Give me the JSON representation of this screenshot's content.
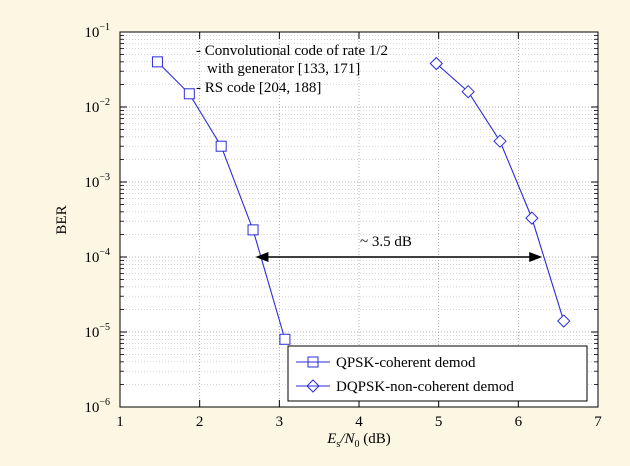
{
  "chart_data": {
    "type": "line",
    "title": "",
    "xlabel": {
      "main": "E",
      "sub1": "s",
      "slash": "/N",
      "sub2": "0",
      "tail": " (dB)"
    },
    "ylabel": "BER",
    "xlim": [
      1,
      7
    ],
    "ylim": [
      1e-06,
      0.1
    ],
    "yscale": "log",
    "grid": true,
    "x_ticks": [
      "1",
      "2",
      "3",
      "4",
      "5",
      "6",
      "7"
    ],
    "y_ticks": [
      {
        "base": "10",
        "exp": "−6"
      },
      {
        "base": "10",
        "exp": "−5"
      },
      {
        "base": "10",
        "exp": "−4"
      },
      {
        "base": "10",
        "exp": "−3"
      },
      {
        "base": "10",
        "exp": "−2"
      },
      {
        "base": "10",
        "exp": "−1"
      }
    ],
    "series": [
      {
        "name": "QPSK-coherent demod",
        "marker": "square",
        "color": "#2b2bd9",
        "x": [
          1.47,
          1.87,
          2.27,
          2.67,
          3.07
        ],
        "y": [
          0.04,
          0.015,
          0.003,
          0.00023,
          8e-06
        ]
      },
      {
        "name": "DQPSK-non-coherent demod",
        "marker": "diamond",
        "color": "#2b2bd9",
        "x": [
          4.97,
          5.37,
          5.77,
          6.17,
          6.57
        ],
        "y": [
          0.038,
          0.016,
          0.0035,
          0.00033,
          1.4e-05
        ]
      }
    ],
    "annotations": {
      "code_lines": [
        "- Convolutional code of rate 1/2",
        "with generator [133, 171]",
        "- RS code [204, 188]"
      ],
      "gap": {
        "label": "~ 3.5 dB",
        "y": 0.0001,
        "x_from": 2.7,
        "x_to": 6.3
      }
    },
    "legend_position": "bottom-right",
    "colors": {
      "background": "#fdf6e3",
      "plot_bg": "#ffffff",
      "line": "#2b2bd9"
    }
  }
}
